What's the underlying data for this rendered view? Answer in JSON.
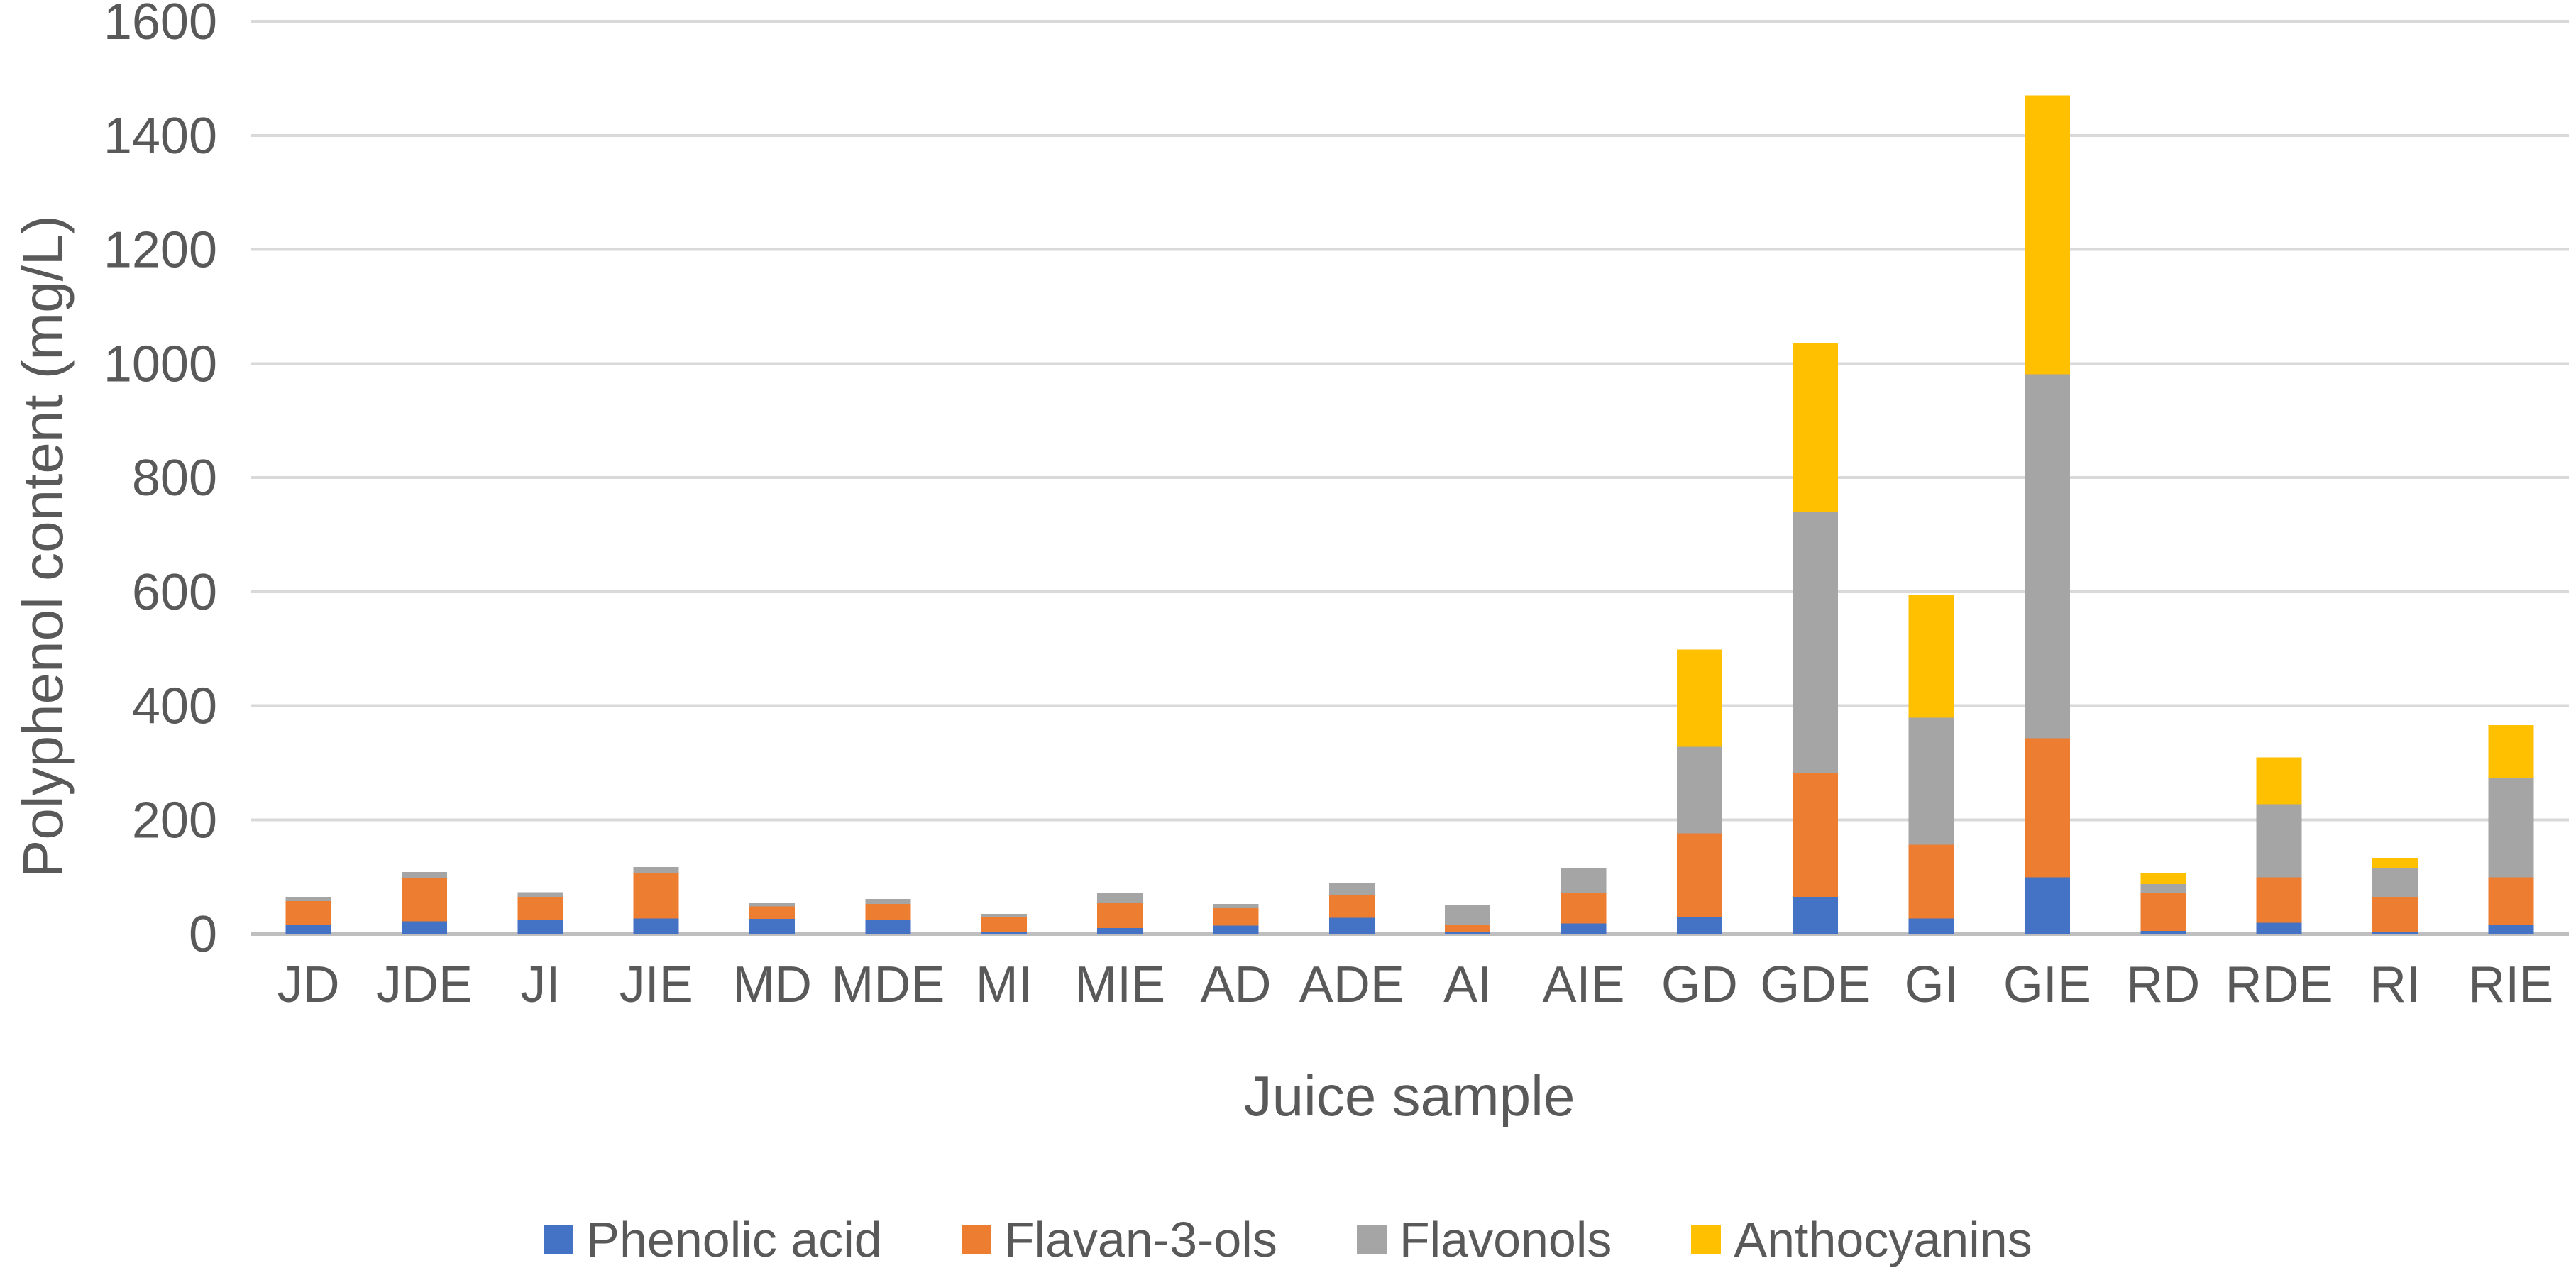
{
  "chart_data": {
    "type": "bar",
    "stacked": true,
    "title": "",
    "xlabel": "Juice sample",
    "ylabel": "Polyphenol content (mg/L)",
    "ylim": [
      0,
      1600
    ],
    "yticks": [
      0,
      200,
      400,
      600,
      800,
      1000,
      1200,
      1400,
      1600
    ],
    "grid": true,
    "legend_position": "bottom",
    "categories": [
      "JD",
      "JDE",
      "JI",
      "JIE",
      "MD",
      "MDE",
      "MI",
      "MIE",
      "AD",
      "ADE",
      "AI",
      "AIE",
      "GD",
      "GDE",
      "GI",
      "GIE",
      "RD",
      "RDE",
      "RI",
      "RIE"
    ],
    "series": [
      {
        "name": "Phenolic acid",
        "color": "#4472C4",
        "values": [
          15,
          22,
          25,
          27,
          26,
          24,
          3,
          10,
          14,
          28,
          3,
          18,
          30,
          65,
          27,
          99,
          5,
          19,
          3,
          15
        ]
      },
      {
        "name": "Flavan-3-ols",
        "color": "#ED7D31",
        "values": [
          42,
          75,
          40,
          80,
          22,
          28,
          26,
          45,
          31,
          39,
          12,
          53,
          146,
          216,
          129,
          244,
          66,
          80,
          62,
          84
        ]
      },
      {
        "name": "Flavonols",
        "color": "#A5A5A5",
        "values": [
          8,
          11,
          8,
          10,
          7,
          9,
          6,
          17,
          7,
          22,
          35,
          44,
          152,
          458,
          223,
          638,
          16,
          128,
          51,
          175
        ]
      },
      {
        "name": "Anthocyanins",
        "color": "#FFC000",
        "values": [
          0,
          0,
          0,
          0,
          0,
          0,
          0,
          0,
          0,
          0,
          0,
          0,
          170,
          296,
          216,
          489,
          20,
          82,
          17,
          92
        ]
      }
    ]
  },
  "style": {
    "text_color": "#595959",
    "gridline_color": "#D9D9D9",
    "axisline_color": "#BFBFBF",
    "background": "#FFFFFF"
  }
}
